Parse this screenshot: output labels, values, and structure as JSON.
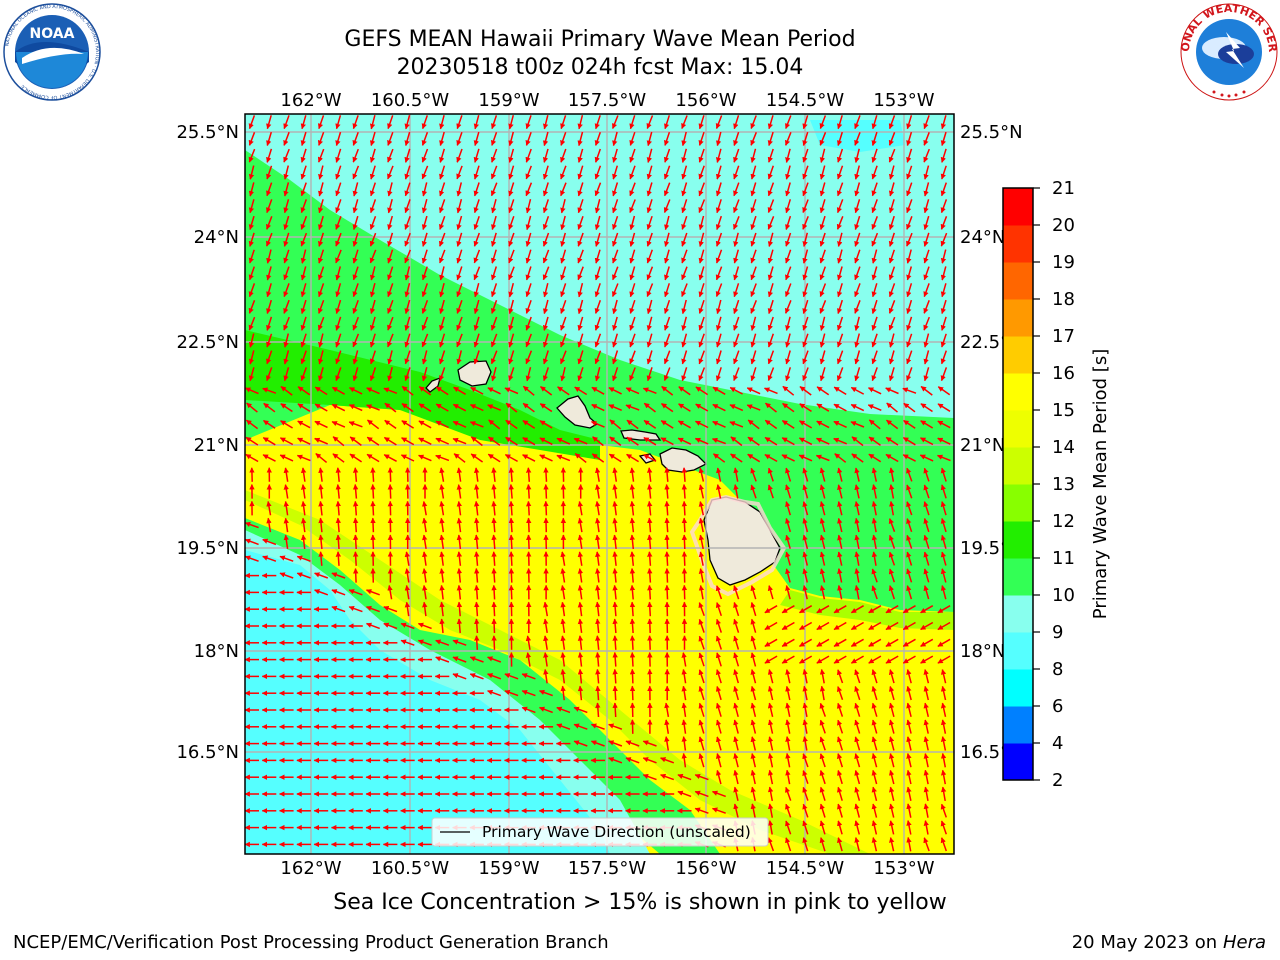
{
  "header": {
    "title_line1": "GEFS MEAN Hawaii Primary Wave Mean Period",
    "title_line2": "20230518 t00z 024h fcst   Max: 15.04"
  },
  "logos": {
    "left": {
      "icon": "noaa-logo",
      "text": "NOAA",
      "ring_text": "NATIONAL OCEANIC AND ATMOSPHERIC ADMINISTRATION · U.S. DEPARTMENT OF COMMERCE"
    },
    "right": {
      "icon": "national-weather-service-logo",
      "ring_text": "NATIONAL WEATHER SERVICE"
    }
  },
  "map": {
    "lon_ticks": [
      "162°W",
      "160.5°W",
      "159°W",
      "157.5°W",
      "156°W",
      "154.5°W",
      "153°W"
    ],
    "lat_ticks_left": [
      "25.5°N",
      "24°N",
      "22.5°N",
      "21°N",
      "19.5°N",
      "18°N",
      "16.5°N"
    ],
    "lat_ticks_right": [
      "25.5°N",
      "24°N",
      "22.5°N",
      "21°N",
      "19.5°N",
      "18°N",
      "16.5°N"
    ],
    "legend": "Primary Wave Direction (unscaled)",
    "arrow_color": "#ff0000",
    "land_color": "#efeadb",
    "grid_color": "#b3b3b3"
  },
  "colorbar": {
    "label": "Primary Wave Mean Period [s]",
    "levels": [
      2,
      4,
      6,
      8,
      9,
      10,
      11,
      12,
      13,
      14,
      15,
      16,
      17,
      18,
      19,
      20,
      21
    ],
    "colors": [
      "#0000ff",
      "#0080ff",
      "#00ffff",
      "#55ffff",
      "#88ffee",
      "#33ff55",
      "#22ee00",
      "#88ff00",
      "#ccff00",
      "#eeff00",
      "#ffff00",
      "#ffcc00",
      "#ff9900",
      "#ff6600",
      "#ff3300",
      "#ff0000"
    ]
  },
  "subcaption": "Sea Ice Concentration > 15% is shown in pink to yellow",
  "footer": {
    "left": "NCEP/EMC/Verification Post Processing Product Generation Branch",
    "date": "20 May 2023 on",
    "machine": "Hera"
  }
}
